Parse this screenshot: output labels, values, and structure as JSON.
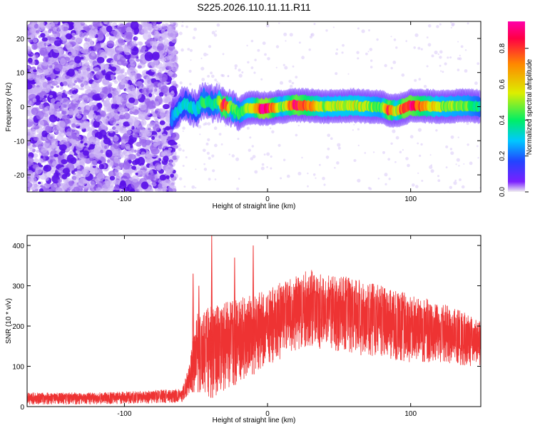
{
  "title": "S225.2026.110.11.11.R11",
  "colors": {
    "snr_line": "#ee3333",
    "background_speckle": "#9a66ee",
    "colorbar_stops": [
      "#f0f0f0",
      "#6a00ff",
      "#2244ff",
      "#00c8ff",
      "#00ee66",
      "#ddee00",
      "#ff8800",
      "#ff0044",
      "#ff00aa"
    ]
  },
  "chart_data": [
    {
      "type": "heatmap",
      "title": "S225.2026.110.11.11.R11",
      "xlabel": "Height of straight line (km)",
      "ylabel": "Frequency (Hz)",
      "xlim": [
        -168,
        149
      ],
      "ylim": [
        -25,
        25
      ],
      "xticks": [
        -100,
        0,
        100
      ],
      "yticks": [
        -20,
        -10,
        0,
        10,
        20
      ],
      "grid": false,
      "noise_region_x": [
        -168,
        -64
      ],
      "ridge": {
        "x": [
          -67,
          -63,
          -58,
          -54,
          -50,
          -45,
          -40,
          -35,
          -30,
          -25,
          -20,
          -15,
          -10,
          -5,
          0,
          10,
          20,
          40,
          60,
          80,
          85,
          90,
          95,
          100,
          120,
          140,
          149
        ],
        "y": [
          -3.5,
          -1,
          1,
          0,
          -1,
          2,
          1,
          1,
          0.5,
          -0.5,
          -2,
          -0.5,
          -0.3,
          -0.5,
          -0.5,
          0,
          0.5,
          0,
          0.3,
          -0.2,
          -1,
          -1.2,
          -0.5,
          0.3,
          0,
          0.3,
          0
        ],
        "amplitude": [
          0.25,
          0.3,
          0.3,
          0.35,
          0.3,
          0.4,
          0.35,
          0.4,
          0.85,
          0.45,
          0.4,
          0.5,
          0.55,
          0.9,
          0.9,
          0.45,
          0.85,
          0.5,
          0.55,
          0.45,
          0.85,
          0.5,
          0.85,
          0.85,
          0.5,
          0.45,
          0.35
        ]
      },
      "colorbar": {
        "label": "Normalized spectral amplitude",
        "range": [
          0,
          0.95
        ],
        "ticks": [
          0.0,
          0.2,
          0.4,
          0.6,
          0.8
        ]
      }
    },
    {
      "type": "line",
      "xlabel": "Height of straight line (km)",
      "ylabel": "SNR (10 * v/v)",
      "xlim": [
        -168,
        149
      ],
      "ylim": [
        0,
        425
      ],
      "xticks": [
        -100,
        0,
        100
      ],
      "yticks": [
        0,
        100,
        200,
        300,
        400
      ],
      "grid": false,
      "envelope": {
        "x": [
          -168,
          -120,
          -80,
          -60,
          -55,
          -50,
          -40,
          -30,
          -20,
          -10,
          0,
          10,
          20,
          30,
          40,
          60,
          80,
          100,
          120,
          140,
          149
        ],
        "upper": [
          35,
          35,
          40,
          45,
          100,
          230,
          250,
          260,
          270,
          280,
          290,
          310,
          335,
          340,
          330,
          320,
          300,
          280,
          260,
          230,
          210
        ],
        "lower": [
          5,
          5,
          8,
          10,
          30,
          40,
          20,
          40,
          60,
          80,
          100,
          120,
          140,
          150,
          140,
          130,
          120,
          110,
          110,
          100,
          100
        ]
      },
      "spikes": [
        {
          "x": -52,
          "y": 330
        },
        {
          "x": -48,
          "y": 300
        },
        {
          "x": -39,
          "y": 425
        },
        {
          "x": -23,
          "y": 370
        },
        {
          "x": -10,
          "y": 400
        }
      ]
    }
  ]
}
